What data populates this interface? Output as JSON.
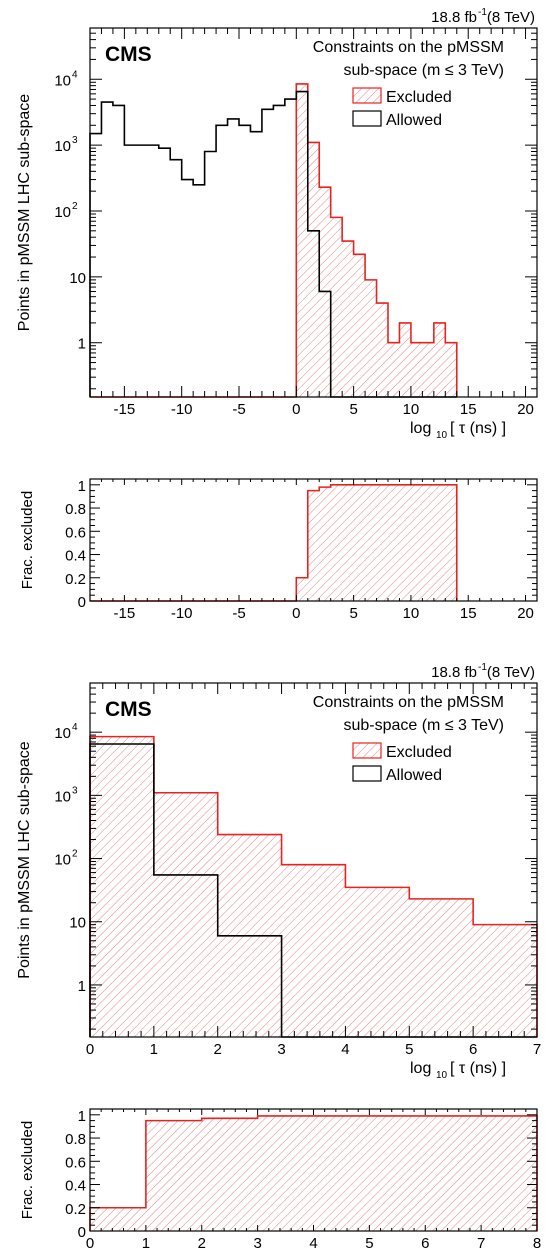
{
  "chart_data": [
    {
      "type": "histogram",
      "lumi": "18.8 fb",
      "lumi_exp": "-1",
      "energy": "(8 TeV)",
      "cms_label": "CMS",
      "annotation_line1": "Constraints on the pMSSM",
      "annotation_line2": "sub-space (m ≤ 3 TeV)",
      "legend": [
        "Excluded",
        "Allowed"
      ],
      "ylabel": "Points in pMSSM LHC sub-space",
      "xlabel": "log",
      "xlabel_sub": "10",
      "xlabel_rest": "[ τ (ns) ]",
      "xlim": [
        -18,
        21
      ],
      "ylim": [
        0.15,
        60000
      ],
      "yscale": "log",
      "xticks": [
        -15,
        -10,
        -5,
        0,
        5,
        10,
        15,
        20
      ],
      "yticks": [
        {
          "v": 1,
          "l": "1"
        },
        {
          "v": 10,
          "l": "10"
        },
        {
          "v": 100,
          "l": "10",
          "e": "2"
        },
        {
          "v": 1000,
          "l": "10",
          "e": "3"
        },
        {
          "v": 10000,
          "l": "10",
          "e": "4"
        }
      ],
      "bin_edges": [
        -18,
        -17,
        -16,
        -15,
        -14,
        -13,
        -12,
        -11,
        -10,
        -9,
        -8,
        -7,
        -6,
        -5,
        -4,
        -3,
        -2,
        -1,
        0,
        1,
        2,
        3,
        4,
        5,
        6,
        7,
        8,
        9,
        10,
        11,
        12,
        13,
        14
      ],
      "series": [
        {
          "name": "Excluded",
          "values": [
            0,
            0,
            0,
            0,
            0,
            0,
            0,
            0,
            0,
            0,
            0,
            0,
            0,
            0,
            0,
            0,
            0,
            0,
            8500,
            1100,
            230,
            80,
            35,
            22,
            9,
            4,
            1,
            2,
            1,
            1,
            2,
            1
          ]
        },
        {
          "name": "Allowed",
          "values": [
            1500,
            4500,
            4000,
            1000,
            1000,
            1000,
            900,
            600,
            300,
            250,
            800,
            2000,
            2500,
            2000,
            1600,
            3500,
            4000,
            5000,
            6500,
            50,
            6,
            0,
            0,
            0,
            0,
            0,
            0,
            0,
            0,
            0,
            0,
            0
          ]
        }
      ]
    },
    {
      "type": "histogram",
      "ylabel": "Frac. excluded",
      "xlim": [
        -18,
        21
      ],
      "ylim": [
        0,
        1.05
      ],
      "xticks": [
        -15,
        -10,
        -5,
        0,
        5,
        10,
        15,
        20
      ],
      "yticks": [
        {
          "v": 0,
          "l": "0"
        },
        {
          "v": 0.2,
          "l": "0.2"
        },
        {
          "v": 0.4,
          "l": "0.4"
        },
        {
          "v": 0.6,
          "l": "0.6"
        },
        {
          "v": 0.8,
          "l": "0.8"
        },
        {
          "v": 1,
          "l": "1"
        }
      ],
      "bin_edges": [
        -18,
        -17,
        -16,
        -15,
        -14,
        -13,
        -12,
        -11,
        -10,
        -9,
        -8,
        -7,
        -6,
        -5,
        -4,
        -3,
        -2,
        -1,
        0,
        1,
        2,
        3,
        4,
        5,
        6,
        7,
        8,
        9,
        10,
        11,
        12,
        13,
        14
      ],
      "values": [
        0,
        0,
        0,
        0,
        0,
        0,
        0,
        0,
        0,
        0,
        0,
        0,
        0,
        0,
        0,
        0,
        0,
        0,
        0.2,
        0.95,
        0.98,
        1,
        1,
        1,
        1,
        1,
        1,
        1,
        1,
        1,
        1,
        1
      ]
    },
    {
      "type": "histogram",
      "lumi": "18.8 fb",
      "lumi_exp": "-1",
      "energy": "(8 TeV)",
      "cms_label": "CMS",
      "annotation_line1": "Constraints on the pMSSM",
      "annotation_line2": "sub-space (m ≤ 3 TeV)",
      "legend": [
        "Excluded",
        "Allowed"
      ],
      "ylabel": "Points in pMSSM LHC sub-space",
      "xlabel": "log",
      "xlabel_sub": "10",
      "xlabel_rest": "[ τ (ns) ]",
      "xlim": [
        0,
        7
      ],
      "ylim": [
        0.15,
        60000
      ],
      "yscale": "log",
      "xticks": [
        0,
        1,
        2,
        3,
        4,
        5,
        6,
        7
      ],
      "yticks": [
        {
          "v": 1,
          "l": "1"
        },
        {
          "v": 10,
          "l": "10"
        },
        {
          "v": 100,
          "l": "10",
          "e": "2"
        },
        {
          "v": 1000,
          "l": "10",
          "e": "3"
        },
        {
          "v": 10000,
          "l": "10",
          "e": "4"
        }
      ],
      "bin_edges": [
        0,
        1,
        2,
        3,
        4,
        5,
        6,
        7
      ],
      "series": [
        {
          "name": "Excluded",
          "values": [
            8500,
            1100,
            240,
            80,
            35,
            23,
            9
          ]
        },
        {
          "name": "Allowed",
          "values": [
            6500,
            55,
            6,
            0,
            0,
            0,
            0
          ]
        }
      ]
    },
    {
      "type": "histogram",
      "ylabel": "Frac. excluded",
      "xlim": [
        0,
        8
      ],
      "ylim": [
        0,
        1.05
      ],
      "xticks": [
        0,
        1,
        2,
        3,
        4,
        5,
        6,
        7,
        8
      ],
      "yticks": [
        {
          "v": 0,
          "l": "0"
        },
        {
          "v": 0.2,
          "l": "0.2"
        },
        {
          "v": 0.4,
          "l": "0.4"
        },
        {
          "v": 0.6,
          "l": "0.6"
        },
        {
          "v": 0.8,
          "l": "0.8"
        },
        {
          "v": 1,
          "l": "1"
        }
      ],
      "bin_edges": [
        0,
        1,
        2,
        3,
        4,
        5,
        6,
        7,
        8
      ],
      "values": [
        0.2,
        0.95,
        0.97,
        0.99,
        0.99,
        0.99,
        0.99,
        0.99
      ]
    }
  ]
}
